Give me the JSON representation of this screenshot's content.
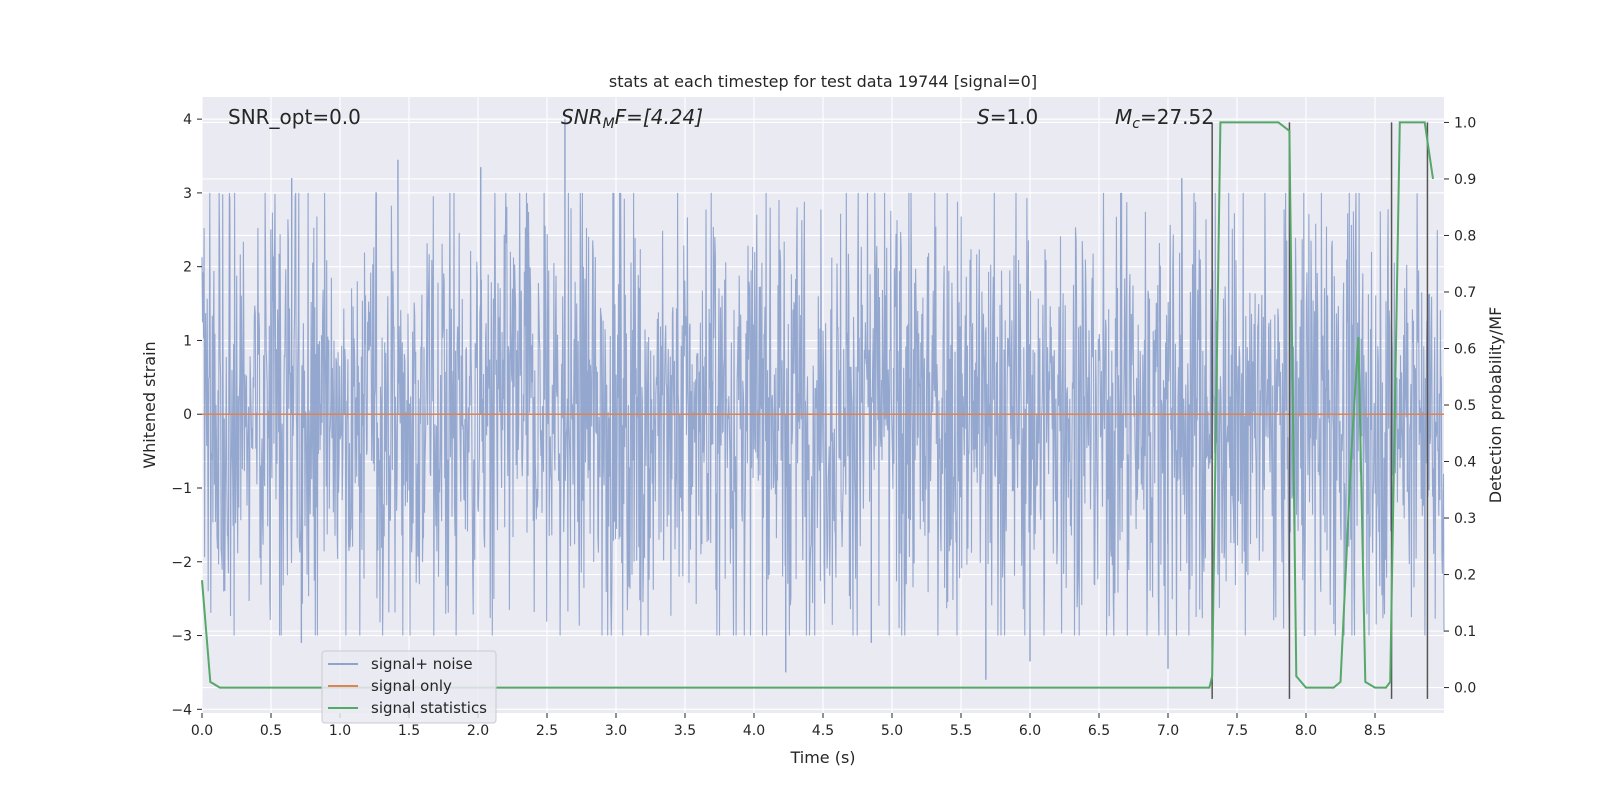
{
  "chart_data": {
    "type": "line",
    "title": "stats at each timestep for test data 19744 [signal=0]",
    "xlabel": "Time (s)",
    "ylabel": "Whitened strain",
    "ylabel_right": "Detection probability/MF",
    "xlim": [
      0,
      9
    ],
    "ylim": [
      -4.05,
      4.3
    ],
    "ylim_right": [
      -0.045,
      1.045
    ],
    "x_ticks": [
      "0.0",
      "0.5",
      "1.0",
      "1.5",
      "2.0",
      "2.5",
      "3.0",
      "3.5",
      "4.0",
      "4.5",
      "5.0",
      "5.5",
      "6.0",
      "6.5",
      "7.0",
      "7.5",
      "8.0",
      "8.5"
    ],
    "y_ticks": [
      "−4",
      "−3",
      "−2",
      "−1",
      "0",
      "1",
      "2",
      "3",
      "4"
    ],
    "y_ticks_right": [
      "0.0",
      "0.1",
      "0.2",
      "0.3",
      "0.4",
      "0.5",
      "0.6",
      "0.7",
      "0.8",
      "0.9",
      "1.0"
    ],
    "annotations": {
      "snr_opt": "SNR_opt=0.0",
      "snr_mf_main": "SNR",
      "snr_mf_sub": "M",
      "snr_mf_tail": "F=[4.24]",
      "s_main": "S",
      "s_tail": "=1.0",
      "mc_main": "M",
      "mc_sub": "c",
      "mc_tail": "=27.52"
    },
    "legend": {
      "position": "lower-left",
      "entries": [
        "signal+ noise",
        "signal only",
        "signal statistics"
      ]
    },
    "series": [
      {
        "name": "signal+ noise",
        "axis": "left",
        "style": "noise-band",
        "color": "#8fa3cc",
        "x_range": [
          0,
          9
        ],
        "typical_range": [
          -1.6,
          1.6
        ],
        "extremes": [
          {
            "x": 2.63,
            "y": 4.0
          },
          {
            "x": 1.42,
            "y": 3.45
          },
          {
            "x": 2.02,
            "y": 3.35
          },
          {
            "x": 0.65,
            "y": 3.2
          },
          {
            "x": 7.1,
            "y": 3.2
          },
          {
            "x": 0.2,
            "y": 2.95
          },
          {
            "x": 4.23,
            "y": -3.5
          },
          {
            "x": 5.68,
            "y": -3.6
          },
          {
            "x": 7.0,
            "y": -3.45
          },
          {
            "x": 4.85,
            "y": -3.1
          },
          {
            "x": 0.72,
            "y": -3.1
          },
          {
            "x": 6.0,
            "y": -3.35
          }
        ]
      },
      {
        "name": "signal only",
        "axis": "left",
        "color": "#dd8452",
        "x": [
          0,
          9
        ],
        "y": [
          0,
          0
        ]
      },
      {
        "name": "signal statistics",
        "axis": "right",
        "color": "#55a868",
        "x": [
          0.0,
          0.06,
          0.13,
          7.3,
          7.32,
          7.38,
          7.45,
          7.8,
          7.88,
          7.93,
          8.0,
          8.2,
          8.25,
          8.33,
          8.38,
          8.43,
          8.5,
          8.58,
          8.61,
          8.68,
          8.75,
          8.86,
          8.92
        ],
        "y": [
          0.19,
          0.01,
          0.0,
          0.0,
          0.02,
          1.0,
          1.0,
          1.0,
          0.985,
          0.02,
          0.0,
          0.0,
          0.01,
          0.42,
          0.62,
          0.01,
          0.0,
          0.0,
          0.01,
          1.0,
          1.0,
          1.0,
          0.9
        ]
      }
    ],
    "vertical_lines": [
      {
        "x": 7.32,
        "y": [
          -0.02,
          1.0
        ]
      },
      {
        "x": 7.88,
        "y": [
          -0.02,
          1.0
        ]
      },
      {
        "x": 8.62,
        "y": [
          -0.02,
          1.0
        ]
      },
      {
        "x": 8.88,
        "y": [
          -0.02,
          1.0
        ]
      }
    ],
    "grid": true,
    "colors": {
      "plot_background": "#eaeaf2",
      "grid": "#ffffff",
      "noise": "#8fa3cc",
      "signal_only": "#dd8452",
      "signal_statistics": "#55a868",
      "vlines": "#555555"
    }
  }
}
